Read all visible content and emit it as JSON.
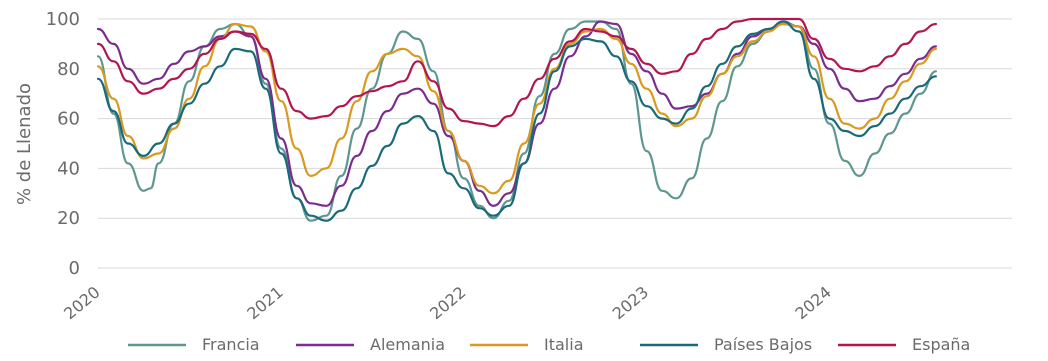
{
  "chart_data": {
    "type": "line",
    "title": "",
    "xlabel": "",
    "ylabel": "% de Llenado",
    "ylim": [
      0,
      100
    ],
    "xlim": [
      "2020-01-01",
      "2024-12-31"
    ],
    "yticks": [
      0,
      20,
      40,
      60,
      80,
      100
    ],
    "x_ticks": [
      {
        "date": "2020-01-01",
        "label": "2020"
      },
      {
        "date": "2021-01-01",
        "label": "2021"
      },
      {
        "date": "2022-01-01",
        "label": "2022"
      },
      {
        "date": "2023-01-01",
        "label": "2023"
      },
      {
        "date": "2024-01-01",
        "label": "2024"
      }
    ],
    "grid": "horizontal",
    "legend_position": "bottom",
    "series": [
      {
        "name": "Francia",
        "color": "#5e9690",
        "points": [
          [
            "2020-01-01",
            85
          ],
          [
            "2020-02-01",
            62
          ],
          [
            "2020-03-01",
            42
          ],
          [
            "2020-04-01",
            31
          ],
          [
            "2020-04-15",
            32
          ],
          [
            "2020-05-01",
            42
          ],
          [
            "2020-06-01",
            58
          ],
          [
            "2020-07-01",
            75
          ],
          [
            "2020-08-01",
            89
          ],
          [
            "2020-09-01",
            96
          ],
          [
            "2020-10-01",
            98
          ],
          [
            "2020-11-01",
            93
          ],
          [
            "2020-12-01",
            74
          ],
          [
            "2021-01-01",
            48
          ],
          [
            "2021-02-01",
            28
          ],
          [
            "2021-03-01",
            19
          ],
          [
            "2021-04-01",
            21
          ],
          [
            "2021-05-01",
            37
          ],
          [
            "2021-06-01",
            56
          ],
          [
            "2021-07-01",
            72
          ],
          [
            "2021-08-01",
            86
          ],
          [
            "2021-09-01",
            95
          ],
          [
            "2021-10-01",
            92
          ],
          [
            "2021-11-01",
            79
          ],
          [
            "2021-12-01",
            55
          ],
          [
            "2022-01-01",
            36
          ],
          [
            "2022-02-01",
            25
          ],
          [
            "2022-03-01",
            20
          ],
          [
            "2022-04-01",
            27
          ],
          [
            "2022-05-01",
            46
          ],
          [
            "2022-06-01",
            69
          ],
          [
            "2022-07-01",
            86
          ],
          [
            "2022-08-01",
            96
          ],
          [
            "2022-09-01",
            99
          ],
          [
            "2022-10-01",
            99
          ],
          [
            "2022-11-01",
            96
          ],
          [
            "2022-12-01",
            74
          ],
          [
            "2023-01-01",
            47
          ],
          [
            "2023-02-01",
            31
          ],
          [
            "2023-03-01",
            28
          ],
          [
            "2023-04-01",
            36
          ],
          [
            "2023-05-01",
            52
          ],
          [
            "2023-06-01",
            67
          ],
          [
            "2023-07-01",
            81
          ],
          [
            "2023-08-01",
            90
          ],
          [
            "2023-09-01",
            95
          ],
          [
            "2023-10-01",
            99
          ],
          [
            "2023-11-01",
            97
          ],
          [
            "2023-12-01",
            80
          ],
          [
            "2024-01-01",
            58
          ],
          [
            "2024-02-01",
            43
          ],
          [
            "2024-03-01",
            37
          ],
          [
            "2024-04-01",
            46
          ],
          [
            "2024-05-01",
            54
          ],
          [
            "2024-06-01",
            62
          ],
          [
            "2024-07-01",
            70
          ],
          [
            "2024-08-01",
            79
          ]
        ]
      },
      {
        "name": "Alemania",
        "color": "#7b2d8e",
        "points": [
          [
            "2020-01-01",
            96
          ],
          [
            "2020-02-01",
            90
          ],
          [
            "2020-03-01",
            80
          ],
          [
            "2020-04-01",
            74
          ],
          [
            "2020-05-01",
            76
          ],
          [
            "2020-06-01",
            82
          ],
          [
            "2020-07-01",
            87
          ],
          [
            "2020-08-01",
            89
          ],
          [
            "2020-09-01",
            93
          ],
          [
            "2020-10-01",
            95
          ],
          [
            "2020-11-01",
            93
          ],
          [
            "2020-12-01",
            76
          ],
          [
            "2021-01-01",
            52
          ],
          [
            "2021-02-01",
            33
          ],
          [
            "2021-03-01",
            26
          ],
          [
            "2021-04-01",
            25
          ],
          [
            "2021-05-01",
            33
          ],
          [
            "2021-06-01",
            45
          ],
          [
            "2021-07-01",
            55
          ],
          [
            "2021-08-01",
            63
          ],
          [
            "2021-09-01",
            70
          ],
          [
            "2021-10-01",
            72
          ],
          [
            "2021-11-01",
            66
          ],
          [
            "2021-12-01",
            53
          ],
          [
            "2022-01-01",
            43
          ],
          [
            "2022-02-01",
            31
          ],
          [
            "2022-03-01",
            25
          ],
          [
            "2022-04-01",
            30
          ],
          [
            "2022-05-01",
            42
          ],
          [
            "2022-06-01",
            58
          ],
          [
            "2022-07-01",
            72
          ],
          [
            "2022-08-01",
            85
          ],
          [
            "2022-09-01",
            93
          ],
          [
            "2022-10-01",
            99
          ],
          [
            "2022-11-01",
            98
          ],
          [
            "2022-12-01",
            86
          ],
          [
            "2023-01-01",
            79
          ],
          [
            "2023-02-01",
            70
          ],
          [
            "2023-03-01",
            64
          ],
          [
            "2023-04-01",
            65
          ],
          [
            "2023-05-01",
            70
          ],
          [
            "2023-06-01",
            78
          ],
          [
            "2023-07-01",
            86
          ],
          [
            "2023-08-01",
            93
          ],
          [
            "2023-09-01",
            96
          ],
          [
            "2023-10-01",
            98
          ],
          [
            "2023-11-01",
            97
          ],
          [
            "2023-12-01",
            90
          ],
          [
            "2024-01-01",
            80
          ],
          [
            "2024-02-01",
            72
          ],
          [
            "2024-03-01",
            67
          ],
          [
            "2024-04-01",
            68
          ],
          [
            "2024-05-01",
            73
          ],
          [
            "2024-06-01",
            78
          ],
          [
            "2024-07-01",
            84
          ],
          [
            "2024-08-01",
            89
          ]
        ]
      },
      {
        "name": "Italia",
        "color": "#d99a1f",
        "points": [
          [
            "2020-01-01",
            81
          ],
          [
            "2020-02-01",
            68
          ],
          [
            "2020-03-01",
            53
          ],
          [
            "2020-04-01",
            44
          ],
          [
            "2020-05-01",
            46
          ],
          [
            "2020-06-01",
            56
          ],
          [
            "2020-07-01",
            68
          ],
          [
            "2020-08-01",
            81
          ],
          [
            "2020-09-01",
            92
          ],
          [
            "2020-10-01",
            98
          ],
          [
            "2020-11-01",
            97
          ],
          [
            "2020-12-01",
            87
          ],
          [
            "2021-01-01",
            67
          ],
          [
            "2021-02-01",
            48
          ],
          [
            "2021-03-01",
            37
          ],
          [
            "2021-04-01",
            40
          ],
          [
            "2021-05-01",
            52
          ],
          [
            "2021-06-01",
            67
          ],
          [
            "2021-07-01",
            79
          ],
          [
            "2021-08-01",
            86
          ],
          [
            "2021-09-01",
            88
          ],
          [
            "2021-10-01",
            85
          ],
          [
            "2021-11-01",
            71
          ],
          [
            "2021-12-01",
            55
          ],
          [
            "2022-01-01",
            43
          ],
          [
            "2022-02-01",
            33
          ],
          [
            "2022-03-01",
            30
          ],
          [
            "2022-04-01",
            35
          ],
          [
            "2022-05-01",
            50
          ],
          [
            "2022-06-01",
            66
          ],
          [
            "2022-07-01",
            80
          ],
          [
            "2022-08-01",
            90
          ],
          [
            "2022-09-01",
            95
          ],
          [
            "2022-10-01",
            96
          ],
          [
            "2022-11-01",
            92
          ],
          [
            "2022-12-01",
            82
          ],
          [
            "2023-01-01",
            72
          ],
          [
            "2023-02-01",
            62
          ],
          [
            "2023-03-01",
            57
          ],
          [
            "2023-04-01",
            60
          ],
          [
            "2023-05-01",
            69
          ],
          [
            "2023-06-01",
            78
          ],
          [
            "2023-07-01",
            85
          ],
          [
            "2023-08-01",
            91
          ],
          [
            "2023-09-01",
            95
          ],
          [
            "2023-10-01",
            98
          ],
          [
            "2023-11-01",
            97
          ],
          [
            "2023-12-01",
            85
          ],
          [
            "2024-01-01",
            68
          ],
          [
            "2024-02-01",
            58
          ],
          [
            "2024-03-01",
            56
          ],
          [
            "2024-04-01",
            60
          ],
          [
            "2024-05-01",
            68
          ],
          [
            "2024-06-01",
            75
          ],
          [
            "2024-07-01",
            82
          ],
          [
            "2024-08-01",
            88
          ]
        ]
      },
      {
        "name": "Países Bajos",
        "color": "#1b6a7a",
        "points": [
          [
            "2020-01-01",
            76
          ],
          [
            "2020-02-01",
            63
          ],
          [
            "2020-03-01",
            50
          ],
          [
            "2020-04-01",
            45
          ],
          [
            "2020-05-01",
            50
          ],
          [
            "2020-06-01",
            58
          ],
          [
            "2020-07-01",
            66
          ],
          [
            "2020-08-01",
            74
          ],
          [
            "2020-09-01",
            81
          ],
          [
            "2020-10-01",
            88
          ],
          [
            "2020-11-01",
            87
          ],
          [
            "2020-12-01",
            72
          ],
          [
            "2021-01-01",
            46
          ],
          [
            "2021-02-01",
            28
          ],
          [
            "2021-03-01",
            21
          ],
          [
            "2021-04-01",
            19
          ],
          [
            "2021-05-01",
            23
          ],
          [
            "2021-06-01",
            32
          ],
          [
            "2021-07-01",
            41
          ],
          [
            "2021-08-01",
            49
          ],
          [
            "2021-09-01",
            58
          ],
          [
            "2021-10-01",
            61
          ],
          [
            "2021-11-01",
            55
          ],
          [
            "2021-12-01",
            38
          ],
          [
            "2022-01-01",
            32
          ],
          [
            "2022-02-01",
            24
          ],
          [
            "2022-03-01",
            21
          ],
          [
            "2022-04-01",
            25
          ],
          [
            "2022-05-01",
            42
          ],
          [
            "2022-06-01",
            62
          ],
          [
            "2022-07-01",
            79
          ],
          [
            "2022-08-01",
            89
          ],
          [
            "2022-09-01",
            92
          ],
          [
            "2022-10-01",
            91
          ],
          [
            "2022-11-01",
            85
          ],
          [
            "2022-12-01",
            75
          ],
          [
            "2023-01-01",
            65
          ],
          [
            "2023-02-01",
            60
          ],
          [
            "2023-03-01",
            58
          ],
          [
            "2023-04-01",
            64
          ],
          [
            "2023-05-01",
            73
          ],
          [
            "2023-06-01",
            82
          ],
          [
            "2023-07-01",
            89
          ],
          [
            "2023-08-01",
            94
          ],
          [
            "2023-09-01",
            96
          ],
          [
            "2023-10-01",
            99
          ],
          [
            "2023-11-01",
            95
          ],
          [
            "2023-12-01",
            76
          ],
          [
            "2024-01-01",
            60
          ],
          [
            "2024-02-01",
            55
          ],
          [
            "2024-03-01",
            53
          ],
          [
            "2024-04-01",
            57
          ],
          [
            "2024-05-01",
            62
          ],
          [
            "2024-06-01",
            68
          ],
          [
            "2024-07-01",
            73
          ],
          [
            "2024-08-01",
            77
          ]
        ]
      },
      {
        "name": "España",
        "color": "#b2164f",
        "points": [
          [
            "2020-01-01",
            90
          ],
          [
            "2020-02-01",
            83
          ],
          [
            "2020-03-01",
            75
          ],
          [
            "2020-04-01",
            70
          ],
          [
            "2020-05-01",
            72
          ],
          [
            "2020-06-01",
            76
          ],
          [
            "2020-07-01",
            80
          ],
          [
            "2020-08-01",
            86
          ],
          [
            "2020-09-01",
            92
          ],
          [
            "2020-10-01",
            95
          ],
          [
            "2020-11-01",
            94
          ],
          [
            "2020-12-01",
            88
          ],
          [
            "2021-01-01",
            72
          ],
          [
            "2021-02-01",
            63
          ],
          [
            "2021-03-01",
            60
          ],
          [
            "2021-04-01",
            61
          ],
          [
            "2021-05-01",
            65
          ],
          [
            "2021-06-01",
            69
          ],
          [
            "2021-07-01",
            71
          ],
          [
            "2021-08-01",
            73
          ],
          [
            "2021-09-01",
            75
          ],
          [
            "2021-10-01",
            83
          ],
          [
            "2021-11-01",
            75
          ],
          [
            "2021-12-01",
            64
          ],
          [
            "2022-01-01",
            59
          ],
          [
            "2022-02-01",
            58
          ],
          [
            "2022-03-01",
            57
          ],
          [
            "2022-04-01",
            61
          ],
          [
            "2022-05-01",
            68
          ],
          [
            "2022-06-01",
            76
          ],
          [
            "2022-07-01",
            84
          ],
          [
            "2022-08-01",
            91
          ],
          [
            "2022-09-01",
            96
          ],
          [
            "2022-10-01",
            95
          ],
          [
            "2022-11-01",
            93
          ],
          [
            "2022-12-01",
            88
          ],
          [
            "2023-01-01",
            82
          ],
          [
            "2023-02-01",
            78
          ],
          [
            "2023-03-01",
            79
          ],
          [
            "2023-04-01",
            86
          ],
          [
            "2023-05-01",
            92
          ],
          [
            "2023-06-01",
            96
          ],
          [
            "2023-07-01",
            99
          ],
          [
            "2023-08-01",
            100
          ],
          [
            "2023-09-01",
            100
          ],
          [
            "2023-10-01",
            100
          ],
          [
            "2023-11-01",
            100
          ],
          [
            "2023-12-01",
            92
          ],
          [
            "2024-01-01",
            84
          ],
          [
            "2024-02-01",
            80
          ],
          [
            "2024-03-01",
            79
          ],
          [
            "2024-04-01",
            81
          ],
          [
            "2024-05-01",
            85
          ],
          [
            "2024-06-01",
            90
          ],
          [
            "2024-07-01",
            95
          ],
          [
            "2024-08-01",
            98
          ]
        ]
      }
    ]
  }
}
